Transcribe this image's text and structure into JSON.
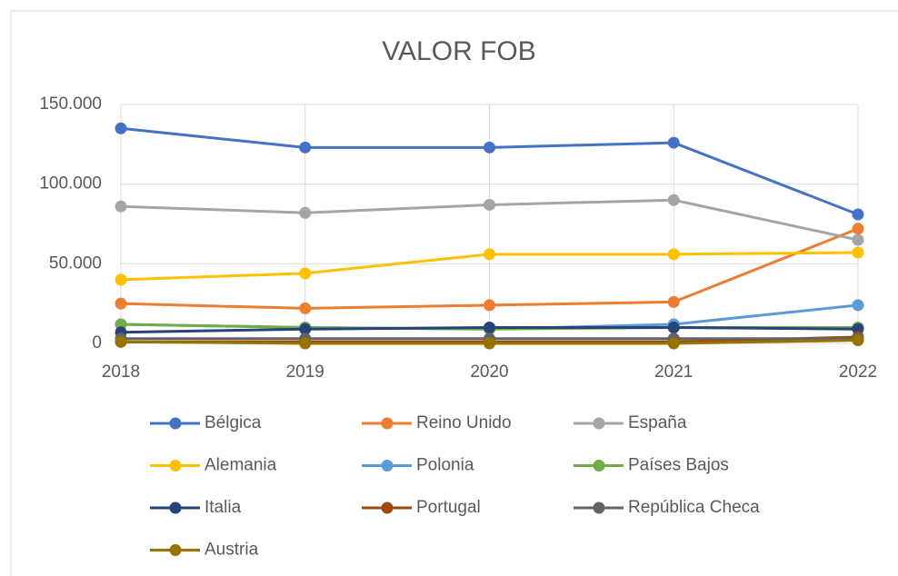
{
  "chart_data": {
    "type": "line",
    "title": "VALOR FOB",
    "categories": [
      "2018",
      "2019",
      "2020",
      "2021",
      "2022"
    ],
    "ylim": [
      0,
      150000
    ],
    "yticks": [
      0,
      {
        "value": 50000,
        "label": "50.000"
      },
      {
        "value": 100000,
        "label": "100.000"
      },
      {
        "value": 150000,
        "label": "150.000"
      }
    ],
    "grid": true,
    "legend": "bottom",
    "series": [
      {
        "name": "Bélgica",
        "color": "#4472c4",
        "values": [
          135000,
          123000,
          123000,
          126000,
          81000
        ]
      },
      {
        "name": "Reino Unido",
        "color": "#ed7d31",
        "values": [
          25000,
          22000,
          24000,
          26000,
          72000
        ]
      },
      {
        "name": "España",
        "color": "#a5a5a5",
        "values": [
          86000,
          82000,
          87000,
          90000,
          65000
        ]
      },
      {
        "name": "Alemania",
        "color": "#ffc000",
        "values": [
          40000,
          44000,
          56000,
          56000,
          57000
        ]
      },
      {
        "name": "Polonia",
        "color": "#5b9bd5",
        "values": [
          12000,
          10000,
          9000,
          12000,
          24000
        ]
      },
      {
        "name": "Países Bajos",
        "color": "#70ad47",
        "values": [
          12000,
          10000,
          9000,
          10000,
          10000
        ]
      },
      {
        "name": "Italia",
        "color": "#264478",
        "values": [
          7000,
          9000,
          10000,
          10000,
          9000
        ]
      },
      {
        "name": "Portugal",
        "color": "#9e480e",
        "values": [
          1000,
          1000,
          1000,
          1000,
          4000
        ]
      },
      {
        "name": "República Checa",
        "color": "#636363",
        "values": [
          3000,
          3000,
          3000,
          3000,
          3000
        ]
      },
      {
        "name": "Austria",
        "color": "#997300",
        "values": [
          1000,
          0,
          0,
          0,
          2000
        ]
      }
    ]
  }
}
